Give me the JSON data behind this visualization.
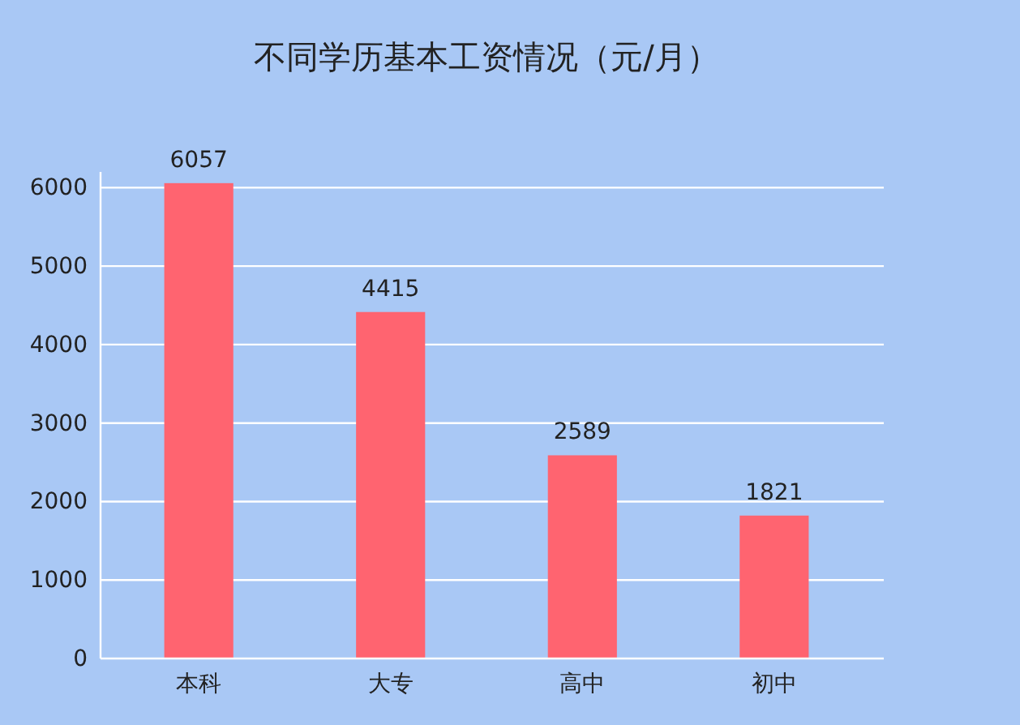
{
  "chart_data": {
    "type": "bar",
    "title": "不同学历基本工资情况（元/月）",
    "categories": [
      "本科",
      "大专",
      "高中",
      "初中"
    ],
    "values": [
      6057,
      4415,
      2589,
      1821
    ],
    "color": "#ff6470",
    "ylim": [
      0,
      6200
    ],
    "yticks": [
      0,
      1000,
      2000,
      3000,
      4000,
      5000,
      6000
    ],
    "grid": "y",
    "data_labels": true
  }
}
